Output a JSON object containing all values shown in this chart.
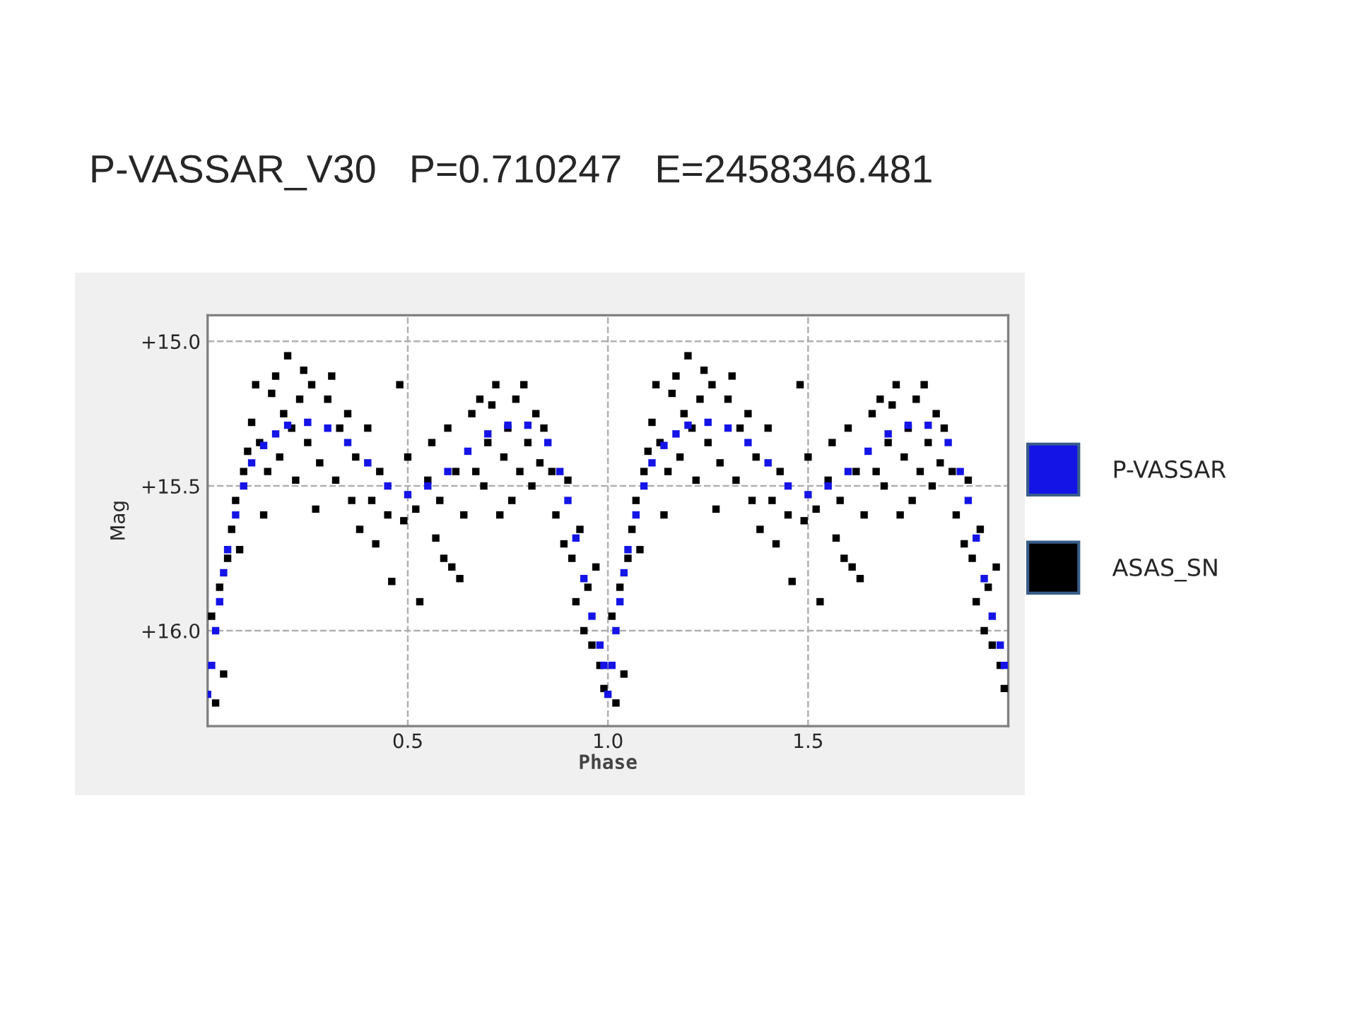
{
  "chart_data": {
    "type": "scatter",
    "title": "P-VASSAR_V30   P=0.710247   E=2458346.481",
    "xlabel": "Phase",
    "ylabel": "Mag",
    "xlim": [
      0.0,
      2.0
    ],
    "xticks": [
      0.5,
      {
        "value": 1,
        "label": "1.0"
      },
      1.5
    ],
    "ylim": [
      16.33,
      14.91
    ],
    "yticks": [
      {
        "value": 15.0,
        "label": "+15.0"
      },
      {
        "value": 15.5,
        "label": "+15.5"
      },
      {
        "value": 16.0,
        "label": "+16.0"
      }
    ],
    "grid": true,
    "legend": "right",
    "marker": "square",
    "series": [
      {
        "name": "ASAS_SN",
        "color": "#000000",
        "x": [
          0.01,
          0.02,
          0.03,
          0.04,
          0.05,
          0.06,
          0.07,
          0.08,
          0.09,
          0.1,
          0.11,
          0.12,
          0.13,
          0.14,
          0.15,
          0.16,
          0.17,
          0.18,
          0.19,
          0.2,
          0.21,
          0.22,
          0.23,
          0.24,
          0.25,
          0.26,
          0.27,
          0.28,
          0.3,
          0.31,
          0.32,
          0.33,
          0.35,
          0.36,
          0.37,
          0.38,
          0.4,
          0.41,
          0.42,
          0.43,
          0.45,
          0.46,
          0.48,
          0.49,
          0.5,
          0.52,
          0.53,
          0.55,
          0.56,
          0.57,
          0.58,
          0.59,
          0.6,
          0.61,
          0.62,
          0.63,
          0.64,
          0.66,
          0.67,
          0.68,
          0.69,
          0.7,
          0.71,
          0.72,
          0.73,
          0.74,
          0.75,
          0.76,
          0.77,
          0.78,
          0.79,
          0.8,
          0.81,
          0.82,
          0.83,
          0.84,
          0.86,
          0.87,
          0.89,
          0.9,
          0.91,
          0.92,
          0.93,
          0.94,
          0.95,
          0.96,
          0.97,
          0.98,
          0.99,
          1.01,
          1.02,
          1.03,
          1.04,
          1.05,
          1.06,
          1.07,
          1.08,
          1.09,
          1.1,
          1.11,
          1.12,
          1.13,
          1.14,
          1.15,
          1.16,
          1.17,
          1.18,
          1.19,
          1.2,
          1.21,
          1.22,
          1.23,
          1.24,
          1.25,
          1.26,
          1.27,
          1.28,
          1.3,
          1.31,
          1.32,
          1.33,
          1.35,
          1.36,
          1.37,
          1.38,
          1.4,
          1.41,
          1.42,
          1.43,
          1.45,
          1.46,
          1.48,
          1.49,
          1.5,
          1.52,
          1.53,
          1.55,
          1.56,
          1.57,
          1.58,
          1.59,
          1.6,
          1.61,
          1.62,
          1.63,
          1.64,
          1.66,
          1.67,
          1.68,
          1.69,
          1.7,
          1.71,
          1.72,
          1.73,
          1.74,
          1.75,
          1.76,
          1.77,
          1.78,
          1.79,
          1.8,
          1.81,
          1.82,
          1.83,
          1.84,
          1.86,
          1.87,
          1.89,
          1.9,
          1.91,
          1.92,
          1.93,
          1.94,
          1.95,
          1.96,
          1.97,
          1.98,
          1.99
        ],
        "values": [
          15.95,
          16.25,
          15.85,
          16.15,
          15.75,
          15.65,
          15.55,
          15.72,
          15.45,
          15.38,
          15.28,
          15.15,
          15.35,
          15.6,
          15.45,
          15.18,
          15.12,
          15.4,
          15.25,
          15.05,
          15.3,
          15.48,
          15.2,
          15.1,
          15.35,
          15.15,
          15.58,
          15.42,
          15.2,
          15.12,
          15.48,
          15.3,
          15.25,
          15.55,
          15.4,
          15.65,
          15.3,
          15.55,
          15.7,
          15.45,
          15.6,
          15.83,
          15.15,
          15.62,
          15.4,
          15.58,
          15.9,
          15.48,
          15.35,
          15.68,
          15.55,
          15.75,
          15.3,
          15.78,
          15.45,
          15.82,
          15.6,
          15.25,
          15.45,
          15.2,
          15.5,
          15.35,
          15.22,
          15.15,
          15.6,
          15.4,
          15.3,
          15.55,
          15.2,
          15.45,
          15.15,
          15.35,
          15.5,
          15.25,
          15.42,
          15.3,
          15.45,
          15.6,
          15.7,
          15.48,
          15.75,
          15.9,
          15.65,
          16.0,
          15.85,
          16.05,
          15.78,
          16.12,
          16.2,
          15.95,
          16.25,
          15.85,
          16.15,
          15.75,
          15.65,
          15.55,
          15.72,
          15.45,
          15.38,
          15.28,
          15.15,
          15.35,
          15.6,
          15.45,
          15.18,
          15.12,
          15.4,
          15.25,
          15.05,
          15.3,
          15.48,
          15.2,
          15.1,
          15.35,
          15.15,
          15.58,
          15.42,
          15.2,
          15.12,
          15.48,
          15.3,
          15.25,
          15.55,
          15.4,
          15.65,
          15.3,
          15.55,
          15.7,
          15.45,
          15.6,
          15.83,
          15.15,
          15.62,
          15.4,
          15.58,
          15.9,
          15.48,
          15.35,
          15.68,
          15.55,
          15.75,
          15.3,
          15.78,
          15.45,
          15.82,
          15.6,
          15.25,
          15.45,
          15.2,
          15.5,
          15.35,
          15.22,
          15.15,
          15.6,
          15.4,
          15.3,
          15.55,
          15.2,
          15.45,
          15.15,
          15.35,
          15.5,
          15.25,
          15.42,
          15.3,
          15.45,
          15.6,
          15.7,
          15.48,
          15.75,
          15.9,
          15.65,
          16.0,
          15.85,
          16.05,
          15.78,
          16.12,
          16.2
        ]
      },
      {
        "name": "P-VASSAR",
        "color": "#1414e6",
        "x": [
          0.0,
          0.01,
          0.02,
          0.03,
          0.04,
          0.05,
          0.07,
          0.09,
          0.11,
          0.14,
          0.17,
          0.2,
          0.25,
          0.3,
          0.35,
          0.4,
          0.45,
          0.5,
          0.55,
          0.6,
          0.65,
          0.7,
          0.75,
          0.8,
          0.85,
          0.88,
          0.9,
          0.92,
          0.94,
          0.96,
          0.98,
          0.99,
          1.0,
          1.01,
          1.02,
          1.03,
          1.04,
          1.05,
          1.07,
          1.09,
          1.11,
          1.14,
          1.17,
          1.2,
          1.25,
          1.3,
          1.35,
          1.4,
          1.45,
          1.5,
          1.55,
          1.6,
          1.65,
          1.7,
          1.75,
          1.8,
          1.85,
          1.88,
          1.9,
          1.92,
          1.94,
          1.96,
          1.98,
          1.99
        ],
        "values": [
          16.22,
          16.12,
          16.0,
          15.9,
          15.8,
          15.72,
          15.6,
          15.5,
          15.42,
          15.36,
          15.32,
          15.29,
          15.28,
          15.3,
          15.35,
          15.42,
          15.5,
          15.53,
          15.5,
          15.45,
          15.38,
          15.32,
          15.29,
          15.29,
          15.35,
          15.45,
          15.55,
          15.68,
          15.82,
          15.95,
          16.05,
          16.12,
          16.22,
          16.12,
          16.0,
          15.9,
          15.8,
          15.72,
          15.6,
          15.5,
          15.42,
          15.36,
          15.32,
          15.29,
          15.28,
          15.3,
          15.35,
          15.42,
          15.5,
          15.53,
          15.5,
          15.45,
          15.38,
          15.32,
          15.29,
          15.29,
          15.35,
          15.45,
          15.55,
          15.68,
          15.82,
          15.95,
          16.05,
          16.12
        ]
      }
    ]
  }
}
